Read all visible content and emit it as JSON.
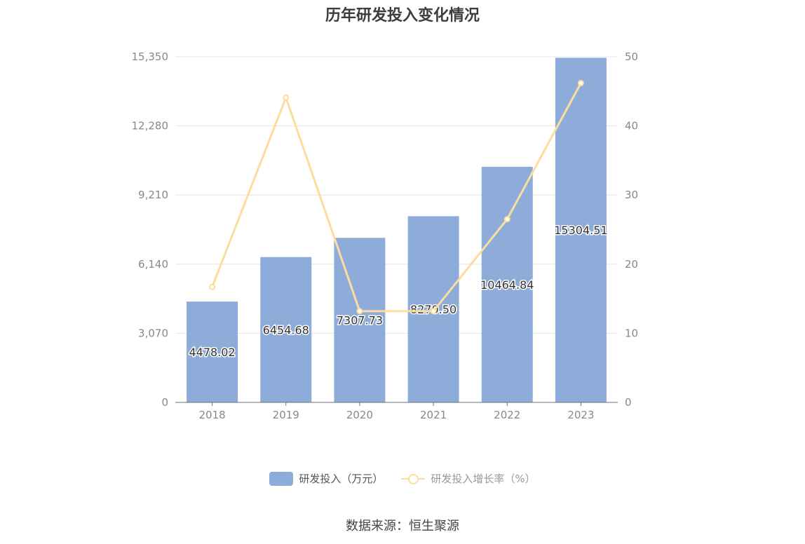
{
  "title": "历年研发投入变化情况",
  "source": "数据来源：恒生聚源",
  "legend": {
    "bar_label": "研发投入（万元）",
    "line_label": "研发投入增长率（%）"
  },
  "colors": {
    "bar": "#8eacd9",
    "line": "#fddc9f",
    "grid": "#e3e6ee",
    "axis_text": "#888888"
  },
  "chart_data": {
    "type": "bar",
    "categories": [
      "2018",
      "2019",
      "2020",
      "2021",
      "2022",
      "2023"
    ],
    "series": [
      {
        "name": "研发投入（万元）",
        "type": "bar",
        "axis": "left",
        "values": [
          4478.02,
          6454.68,
          7307.73,
          8270.5,
          10464.84,
          15304.51
        ],
        "labels": [
          "4478.02",
          "6454.68",
          "7307.73",
          "8270.50",
          "10464.84",
          "15304.51"
        ]
      },
      {
        "name": "研发投入增长率（%）",
        "type": "line",
        "axis": "right",
        "values": [
          16.7,
          44.1,
          13.2,
          13.2,
          26.5,
          46.2
        ]
      }
    ],
    "y_left": {
      "ylim": [
        0,
        15350
      ],
      "ticks": [
        "0",
        "3,070",
        "6,140",
        "9,210",
        "12,280",
        "15,350"
      ]
    },
    "y_right": {
      "ylim": [
        0,
        50
      ],
      "ticks": [
        "0",
        "10",
        "20",
        "30",
        "40",
        "50"
      ]
    },
    "grid": true,
    "legend_position": "bottom"
  }
}
